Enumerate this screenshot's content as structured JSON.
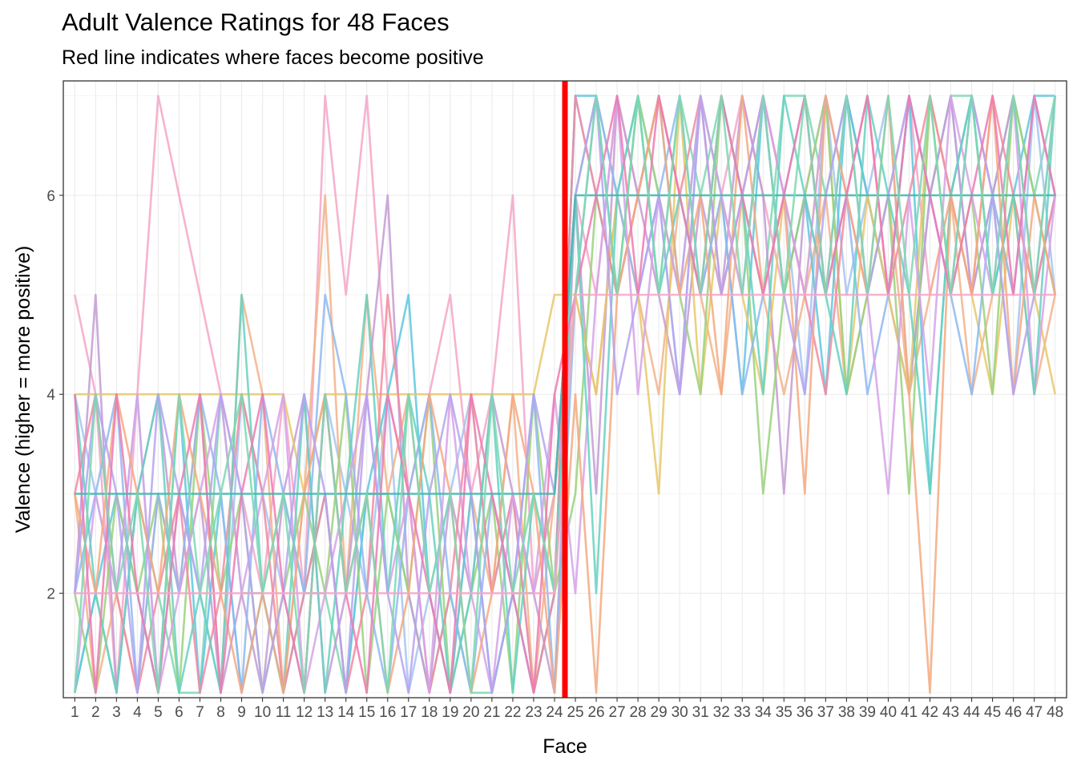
{
  "chart_data": {
    "type": "line",
    "title": "Adult Valence Ratings for 48 Faces",
    "subtitle": "Red line indicates where faces become positive",
    "xlabel": "Face",
    "ylabel": "Valence (higher = more positive)",
    "x": [
      1,
      2,
      3,
      4,
      5,
      6,
      7,
      8,
      9,
      10,
      11,
      12,
      13,
      14,
      15,
      16,
      17,
      18,
      19,
      20,
      21,
      22,
      23,
      24,
      25,
      26,
      27,
      28,
      29,
      30,
      31,
      32,
      33,
      34,
      35,
      36,
      37,
      38,
      39,
      40,
      41,
      42,
      43,
      44,
      45,
      46,
      47,
      48
    ],
    "x_tick_labels": [
      "1",
      "2",
      "3",
      "4",
      "5",
      "6",
      "7",
      "8",
      "9",
      "10",
      "11",
      "12",
      "13",
      "14",
      "15",
      "16",
      "17",
      "18",
      "19",
      "20",
      "21",
      "22",
      "23",
      "24",
      "25",
      "26",
      "27",
      "28",
      "29",
      "30",
      "31",
      "32",
      "33",
      "34",
      "35",
      "36",
      "37",
      "38",
      "39",
      "40",
      "41",
      "42",
      "43",
      "44",
      "45",
      "46",
      "47",
      "48"
    ],
    "ylim": [
      0.95,
      7.15
    ],
    "y_ticks": [
      2,
      4,
      6
    ],
    "y_tick_labels": [
      "2",
      "4",
      "6"
    ],
    "reference_line": {
      "x": 24.5,
      "color": "#ff0000"
    },
    "grid": true,
    "legend": "none",
    "series_colors": [
      "#7dd8b0",
      "#f4a6c8",
      "#a3c4f3",
      "#f2b38a",
      "#c39bd3",
      "#5cc7e0",
      "#e7c86b",
      "#9ad17d",
      "#f28aa0",
      "#8fb9f0",
      "#d6a2e8",
      "#66d1c1",
      "#f5a97f",
      "#b5a3f0",
      "#ee7ab1",
      "#3fb8af"
    ],
    "series": [
      {
        "values": [
          1,
          2,
          1,
          3,
          2,
          1,
          1,
          4,
          2,
          2,
          3,
          2,
          2,
          1,
          3,
          3,
          2,
          1,
          2,
          1,
          1,
          2,
          2,
          3,
          6,
          7,
          6,
          7,
          5,
          7,
          6,
          7,
          6,
          5,
          7,
          7,
          6,
          7,
          6,
          5,
          7,
          6,
          7,
          7,
          6,
          7,
          6,
          7
        ]
      },
      {
        "values": [
          5,
          4,
          1,
          4,
          7,
          6,
          5,
          4,
          3,
          2,
          4,
          2,
          7,
          5,
          7,
          4,
          3,
          4,
          5,
          3,
          4,
          6,
          2,
          3,
          6,
          5,
          7,
          6,
          7,
          6,
          5,
          6,
          7,
          6,
          5,
          6,
          7,
          6,
          5,
          6,
          7,
          5,
          6,
          7,
          6,
          5,
          7,
          6
        ]
      },
      {
        "values": [
          4,
          3,
          2,
          4,
          1,
          3,
          2,
          1,
          4,
          3,
          2,
          1,
          4,
          3,
          2,
          4,
          1,
          2,
          3,
          4,
          2,
          3,
          1,
          2,
          7,
          6,
          5,
          7,
          6,
          4,
          7,
          6,
          5,
          7,
          6,
          4,
          7,
          5,
          6,
          7,
          4,
          6,
          7,
          5,
          6,
          4,
          7,
          5
        ]
      },
      {
        "values": [
          3,
          1,
          2,
          1,
          3,
          2,
          4,
          1,
          5,
          4,
          1,
          3,
          6,
          2,
          5,
          3,
          4,
          2,
          1,
          3,
          2,
          4,
          1,
          3,
          5,
          4,
          6,
          5,
          4,
          6,
          5,
          4,
          6,
          5,
          4,
          5,
          6,
          4,
          5,
          6,
          4,
          5,
          6,
          4,
          5,
          6,
          4,
          5
        ]
      },
      {
        "values": [
          2,
          5,
          1,
          3,
          4,
          2,
          3,
          1,
          2,
          1,
          3,
          4,
          1,
          2,
          4,
          6,
          2,
          1,
          3,
          2,
          4,
          3,
          2,
          1,
          6,
          3,
          7,
          6,
          5,
          4,
          6,
          5,
          7,
          6,
          3,
          6,
          5,
          7,
          6,
          5,
          4,
          6,
          7,
          5,
          6,
          7,
          5,
          6
        ]
      },
      {
        "values": [
          1,
          2,
          3,
          2,
          1,
          4,
          1,
          3,
          1,
          2,
          1,
          2,
          3,
          1,
          3,
          4,
          5,
          2,
          1,
          3,
          1,
          2,
          1,
          2,
          7,
          7,
          5,
          6,
          7,
          5,
          7,
          6,
          4,
          7,
          5,
          6,
          4,
          7,
          6,
          5,
          7,
          3,
          6,
          7,
          5,
          6,
          7,
          7
        ]
      },
      {
        "values": [
          4,
          4,
          4,
          4,
          4,
          4,
          4,
          4,
          4,
          4,
          4,
          3,
          4,
          4,
          4,
          4,
          4,
          4,
          4,
          4,
          4,
          4,
          4,
          5,
          5,
          4,
          6,
          5,
          3,
          7,
          4,
          6,
          5,
          4,
          6,
          5,
          7,
          4,
          6,
          5,
          4,
          7,
          6,
          5,
          4,
          6,
          5,
          4
        ]
      },
      {
        "values": [
          2,
          1,
          3,
          2,
          3,
          1,
          4,
          2,
          3,
          1,
          2,
          3,
          2,
          4,
          1,
          3,
          2,
          4,
          1,
          2,
          3,
          1,
          4,
          2,
          3,
          6,
          5,
          7,
          6,
          5,
          4,
          7,
          6,
          3,
          5,
          6,
          7,
          4,
          5,
          6,
          3,
          7,
          5,
          6,
          4,
          7,
          6,
          5
        ]
      },
      {
        "values": [
          3,
          4,
          2,
          1,
          2,
          3,
          1,
          2,
          4,
          3,
          1,
          2,
          3,
          1,
          2,
          5,
          3,
          1,
          2,
          4,
          2,
          3,
          1,
          2,
          7,
          6,
          5,
          6,
          7,
          6,
          7,
          5,
          6,
          7,
          6,
          5,
          4,
          6,
          7,
          5,
          6,
          7,
          6,
          5,
          7,
          6,
          5,
          6
        ]
      },
      {
        "values": [
          2,
          3,
          4,
          1,
          3,
          2,
          4,
          3,
          1,
          4,
          3,
          2,
          5,
          4,
          2,
          1,
          3,
          4,
          2,
          1,
          3,
          2,
          4,
          1,
          5,
          7,
          6,
          5,
          6,
          7,
          5,
          6,
          4,
          5,
          6,
          7,
          5,
          6,
          4,
          5,
          7,
          6,
          5,
          4,
          6,
          5,
          7,
          6
        ]
      },
      {
        "values": [
          1,
          3,
          2,
          4,
          1,
          2,
          3,
          4,
          2,
          3,
          4,
          1,
          2,
          3,
          4,
          2,
          3,
          1,
          4,
          2,
          1,
          3,
          2,
          4,
          2,
          5,
          7,
          4,
          6,
          5,
          7,
          6,
          5,
          7,
          6,
          5,
          7,
          6,
          5,
          3,
          6,
          4,
          7,
          6,
          5,
          7,
          4,
          6
        ]
      },
      {
        "values": [
          4,
          2,
          1,
          3,
          4,
          1,
          2,
          1,
          5,
          2,
          1,
          4,
          1,
          3,
          5,
          2,
          4,
          3,
          1,
          2,
          4,
          1,
          3,
          2,
          6,
          2,
          6,
          7,
          5,
          6,
          5,
          7,
          6,
          4,
          7,
          6,
          5,
          4,
          7,
          6,
          5,
          3,
          6,
          7,
          5,
          6,
          4,
          7
        ]
      },
      {
        "values": [
          3,
          2,
          4,
          3,
          2,
          4,
          3,
          2,
          1,
          2,
          1,
          3,
          4,
          2,
          3,
          1,
          2,
          4,
          3,
          1,
          2,
          4,
          3,
          1,
          4,
          1,
          5,
          6,
          7,
          5,
          6,
          4,
          7,
          5,
          6,
          3,
          7,
          6,
          5,
          7,
          4,
          1,
          6,
          5,
          7,
          4,
          6,
          5
        ]
      },
      {
        "values": [
          2,
          4,
          3,
          1,
          4,
          3,
          2,
          4,
          3,
          1,
          2,
          4,
          3,
          1,
          4,
          2,
          1,
          3,
          4,
          3,
          1,
          2,
          4,
          3,
          6,
          7,
          4,
          5,
          6,
          4,
          7,
          5,
          6,
          7,
          5,
          4,
          6,
          7,
          5,
          6,
          7,
          6,
          5,
          7,
          6,
          4,
          5,
          7
        ]
      },
      {
        "values": [
          4,
          1,
          4,
          2,
          1,
          3,
          4,
          1,
          3,
          4,
          2,
          1,
          4,
          2,
          1,
          4,
          3,
          2,
          1,
          4,
          3,
          2,
          1,
          4,
          5,
          6,
          7,
          5,
          7,
          6,
          5,
          7,
          6,
          5,
          6,
          7,
          5,
          6,
          7,
          5,
          7,
          6,
          5,
          6,
          7,
          5,
          7,
          6
        ]
      },
      {
        "values": [
          3,
          3,
          3,
          3,
          3,
          3,
          3,
          3,
          3,
          3,
          3,
          3,
          3,
          3,
          3,
          3,
          3,
          3,
          3,
          3,
          3,
          3,
          3,
          3,
          6,
          6,
          6,
          6,
          6,
          6,
          6,
          6,
          6,
          6,
          6,
          6,
          6,
          6,
          6,
          6,
          6,
          6,
          6,
          6,
          6,
          6,
          6,
          6
        ]
      },
      {
        "values": [
          1,
          4,
          2,
          3,
          1,
          4,
          2,
          3,
          4,
          2,
          3,
          1,
          4,
          2,
          3,
          1,
          4,
          2,
          3,
          1,
          4,
          2,
          3,
          2,
          5,
          7,
          5,
          7,
          5,
          7,
          5,
          7,
          5,
          7,
          5,
          7,
          5,
          7,
          5,
          7,
          5,
          7,
          5,
          7,
          5,
          7,
          5,
          7
        ]
      },
      {
        "values": [
          2,
          2,
          2,
          2,
          2,
          2,
          2,
          2,
          2,
          2,
          2,
          2,
          2,
          2,
          2,
          2,
          2,
          2,
          2,
          2,
          2,
          2,
          2,
          2,
          5,
          5,
          5,
          5,
          5,
          5,
          5,
          5,
          5,
          5,
          5,
          5,
          5,
          5,
          5,
          5,
          5,
          5,
          5,
          5,
          5,
          5,
          5,
          5
        ]
      }
    ]
  }
}
